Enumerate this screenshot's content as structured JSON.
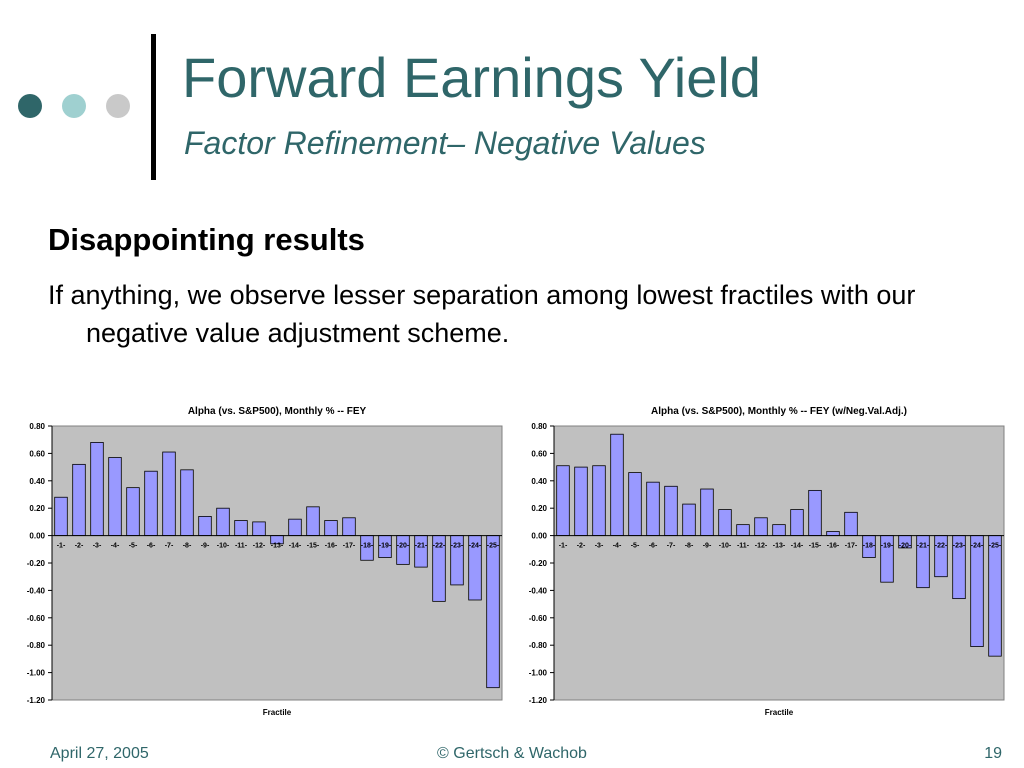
{
  "slide": {
    "title": "Forward Earnings Yield",
    "subtitle": "Factor Refinement– Negative Values",
    "heading": "Disappointing results",
    "body": "If anything, we observe lesser separation among lowest fractiles with our negative value adjustment scheme.",
    "footer": {
      "date": "April 27, 2005",
      "copyright": "© Gertsch & Wachob",
      "page": "19"
    }
  },
  "colors": {
    "title": "#2f6669",
    "bar": "#9999ff",
    "plot_area": "#c0c0c0",
    "dots": [
      "#2f6669",
      "#9fd0d0",
      "#c9c9c9"
    ]
  },
  "chart_data": [
    {
      "type": "bar",
      "title": "Alpha (vs. S&P500), Monthly %  -- FEY",
      "xlabel": "Fractile",
      "ylabel": "",
      "ylim": [
        -1.2,
        0.8
      ],
      "yticks": [
        "0.80",
        "0.60",
        "0.40",
        "0.20",
        "0.00",
        "-0.20",
        "-0.40",
        "-0.60",
        "-0.80",
        "-1.00",
        "-1.20"
      ],
      "grid": false,
      "categories": [
        "-1-",
        "-2-",
        "-3-",
        "-4-",
        "-5-",
        "-6-",
        "-7-",
        "-8-",
        "-9-",
        "-10-",
        "-11-",
        "-12-",
        "-13-",
        "-14-",
        "-15-",
        "-16-",
        "-17-",
        "-18-",
        "-19-",
        "-20-",
        "-21-",
        "-22-",
        "-23-",
        "-24-",
        "-25-"
      ],
      "values": [
        0.28,
        0.52,
        0.68,
        0.57,
        0.35,
        0.47,
        0.61,
        0.48,
        0.14,
        0.2,
        0.11,
        0.1,
        -0.06,
        0.12,
        0.21,
        0.11,
        0.13,
        -0.18,
        -0.16,
        -0.21,
        -0.23,
        -0.48,
        -0.36,
        -0.47,
        -1.11
      ]
    },
    {
      "type": "bar",
      "title": "Alpha (vs. S&P500), Monthly %  -- FEY (w/Neg.Val.Adj.)",
      "xlabel": "Fractile",
      "ylabel": "",
      "ylim": [
        -1.2,
        0.8
      ],
      "yticks": [
        "0.80",
        "0.60",
        "0.40",
        "0.20",
        "0.00",
        "-0.20",
        "-0.40",
        "-0.60",
        "-0.80",
        "-1.00",
        "-1.20"
      ],
      "grid": false,
      "categories": [
        "-1-",
        "-2-",
        "-3-",
        "-4-",
        "-5-",
        "-6-",
        "-7-",
        "-8-",
        "-9-",
        "-10-",
        "-11-",
        "-12-",
        "-13-",
        "-14-",
        "-15-",
        "-16-",
        "-17-",
        "-18-",
        "-19-",
        "-20-",
        "-21-",
        "-22-",
        "-23-",
        "-24-",
        "-25-"
      ],
      "values": [
        0.51,
        0.5,
        0.51,
        0.74,
        0.46,
        0.39,
        0.36,
        0.23,
        0.34,
        0.19,
        0.08,
        0.13,
        0.08,
        0.19,
        0.33,
        0.03,
        0.17,
        -0.16,
        -0.34,
        -0.09,
        -0.38,
        -0.3,
        -0.46,
        -0.81,
        -0.88
      ]
    }
  ]
}
